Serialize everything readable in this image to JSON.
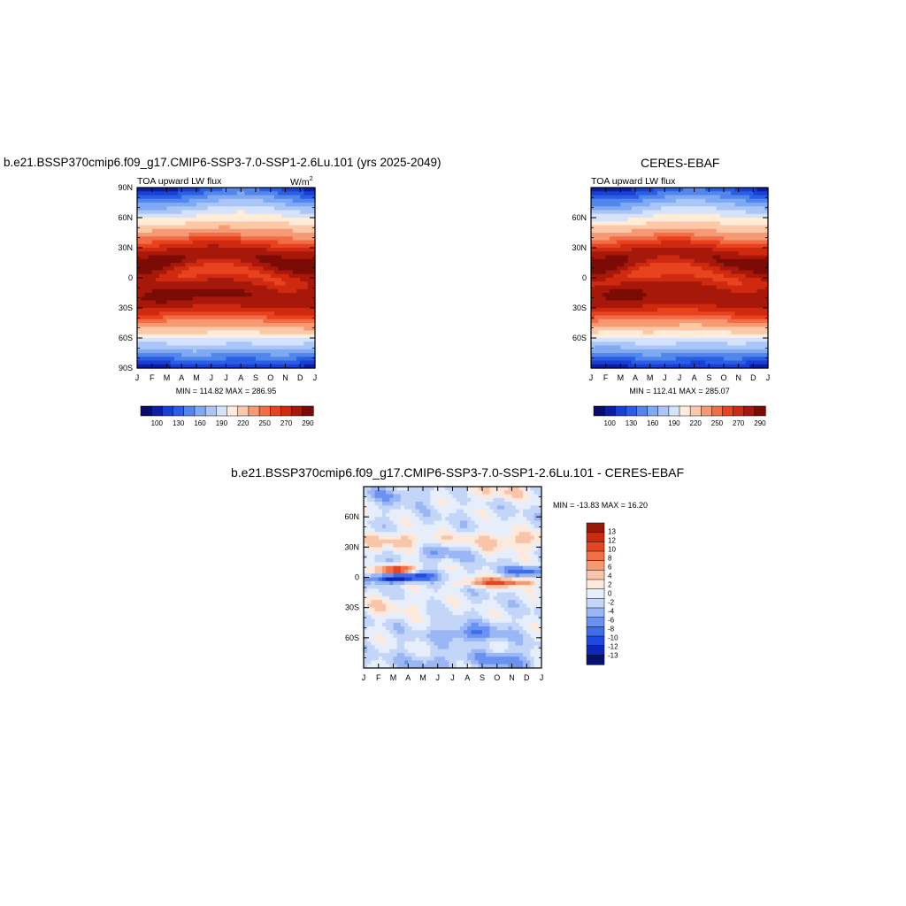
{
  "colors": {
    "abs_palette": [
      "#0a0b6e",
      "#0a1fa6",
      "#1a3fd2",
      "#2a5ee4",
      "#5286ec",
      "#7fa9f2",
      "#aac6f7",
      "#d4e3fb",
      "#ffecd9",
      "#fcc8a8",
      "#f79a74",
      "#f26c47",
      "#e8421f",
      "#cf2a10",
      "#a8180a",
      "#7a0c05"
    ],
    "diff_palette": [
      "#08126e",
      "#0d28b8",
      "#2048e0",
      "#3e6cea",
      "#6b92f0",
      "#9ab6f4",
      "#c4d6f8",
      "#e6eefb",
      "#fde8dc",
      "#fac4a8",
      "#f69a72",
      "#f07048",
      "#e4461f",
      "#c82c0e",
      "#981808"
    ]
  },
  "chart_data": [
    {
      "type": "heatmap",
      "title": "b.e21.BSSP370cmip6.f09_g17.CMIP6-SSP3-7.0-SSP1-2.6Lu.101 (yrs 2025-2049)",
      "subtitle": "TOA upward LW flux",
      "units": "W/m",
      "units_superscript": "2",
      "x_ticks": [
        "J",
        "F",
        "M",
        "A",
        "M",
        "J",
        "J",
        "A",
        "S",
        "O",
        "N",
        "D",
        "J"
      ],
      "y_ticks": [
        "90N",
        "60N",
        "30N",
        "0",
        "30S",
        "60S",
        "90S"
      ],
      "stats": "MIN = 114.82 MAX = 286.95",
      "colorbar_labels": [
        "100",
        "130",
        "160",
        "190",
        "220",
        "250",
        "270",
        "290"
      ]
    },
    {
      "type": "heatmap",
      "title": "CERES-EBAF",
      "subtitle": "TOA upward LW flux",
      "x_ticks": [
        "J",
        "F",
        "M",
        "A",
        "M",
        "J",
        "J",
        "A",
        "S",
        "O",
        "N",
        "D",
        "J"
      ],
      "y_ticks": [
        "60N",
        "30N",
        "0",
        "30S",
        "60S"
      ],
      "stats": "MIN = 112.41 MAX = 285.07",
      "colorbar_labels": [
        "100",
        "130",
        "160",
        "190",
        "220",
        "250",
        "270",
        "290"
      ]
    },
    {
      "type": "heatmap",
      "title": "b.e21.BSSP370cmip6.f09_g17.CMIP6-SSP3-7.0-SSP1-2.6Lu.101 - CERES-EBAF",
      "x_ticks": [
        "J",
        "F",
        "M",
        "A",
        "M",
        "J",
        "J",
        "A",
        "S",
        "O",
        "N",
        "D",
        "J"
      ],
      "y_ticks": [
        "60N",
        "30N",
        "0",
        "30S",
        "60S"
      ],
      "stats": "MIN = -13.83 MAX =  16.20",
      "colorbar_labels": [
        "13",
        "12",
        "10",
        "8",
        "6",
        "4",
        "2",
        "0",
        "-2",
        "-4",
        "-6",
        "-8",
        "-10",
        "-12",
        "-13"
      ]
    }
  ]
}
